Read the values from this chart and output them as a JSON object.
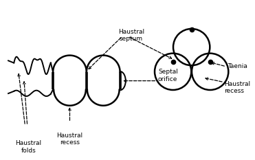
{
  "bg_color": "#ffffff",
  "line_color": "#000000",
  "figsize": [
    3.71,
    2.33
  ],
  "dpi": 100,
  "labels": {
    "haustral_folds": "Haustral\nfolds",
    "haustral_recess_left": "Haustral\nrecess",
    "haustral_septum": "Haustral\nseptum",
    "septal_orifice": "Septal\norifice",
    "taenia": "Taenia",
    "haustral_recess_right": "Haustral\nrecess"
  }
}
